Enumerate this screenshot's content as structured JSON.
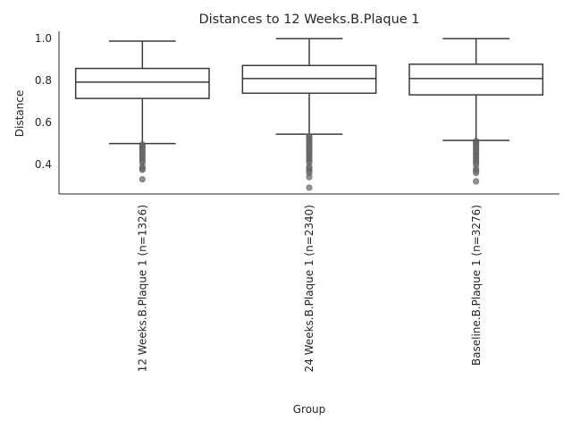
{
  "chart_data": {
    "type": "box",
    "title": "Distances to 12 Weeks.B.Plaque 1",
    "xlabel": "Group",
    "ylabel": "Distance",
    "ylim": [
      0.26,
      1.035
    ],
    "yticks": [
      0.4,
      0.6,
      0.8,
      1.0
    ],
    "ytick_labels": [
      "0.4",
      "0.6",
      "0.8",
      "1.0"
    ],
    "grid": false,
    "colors": {
      "box_line": "#3a3a3a",
      "outlier": "#6b6b6b",
      "axis": "#262626",
      "text": "#262626"
    },
    "groups": [
      {
        "label": "12 Weeks.B.Plaque 1 (n=1326)",
        "whisker_low": 0.5,
        "q1": 0.715,
        "median": 0.793,
        "q3": 0.858,
        "whisker_high": 0.988,
        "outliers": [
          0.495,
          0.488,
          0.48,
          0.47,
          0.46,
          0.45,
          0.44,
          0.43,
          0.42,
          0.41,
          0.39,
          0.38,
          0.375,
          0.33
        ]
      },
      {
        "label": "24 Weeks.B.Plaque 1 (n=2340)",
        "whisker_low": 0.545,
        "q1": 0.74,
        "median": 0.81,
        "q3": 0.872,
        "whisker_high": 1.0,
        "outliers": [
          0.535,
          0.53,
          0.52,
          0.51,
          0.5,
          0.49,
          0.48,
          0.47,
          0.46,
          0.45,
          0.44,
          0.43,
          0.42,
          0.41,
          0.39,
          0.38,
          0.37,
          0.36,
          0.34,
          0.29
        ]
      },
      {
        "label": "Baseline.B.Plaque 1 (n=3276)",
        "whisker_low": 0.515,
        "q1": 0.732,
        "median": 0.81,
        "q3": 0.878,
        "whisker_high": 1.0,
        "outliers": [
          0.512,
          0.505,
          0.5,
          0.49,
          0.48,
          0.47,
          0.46,
          0.45,
          0.44,
          0.43,
          0.42,
          0.41,
          0.4,
          0.38,
          0.37,
          0.36,
          0.32
        ]
      }
    ]
  }
}
